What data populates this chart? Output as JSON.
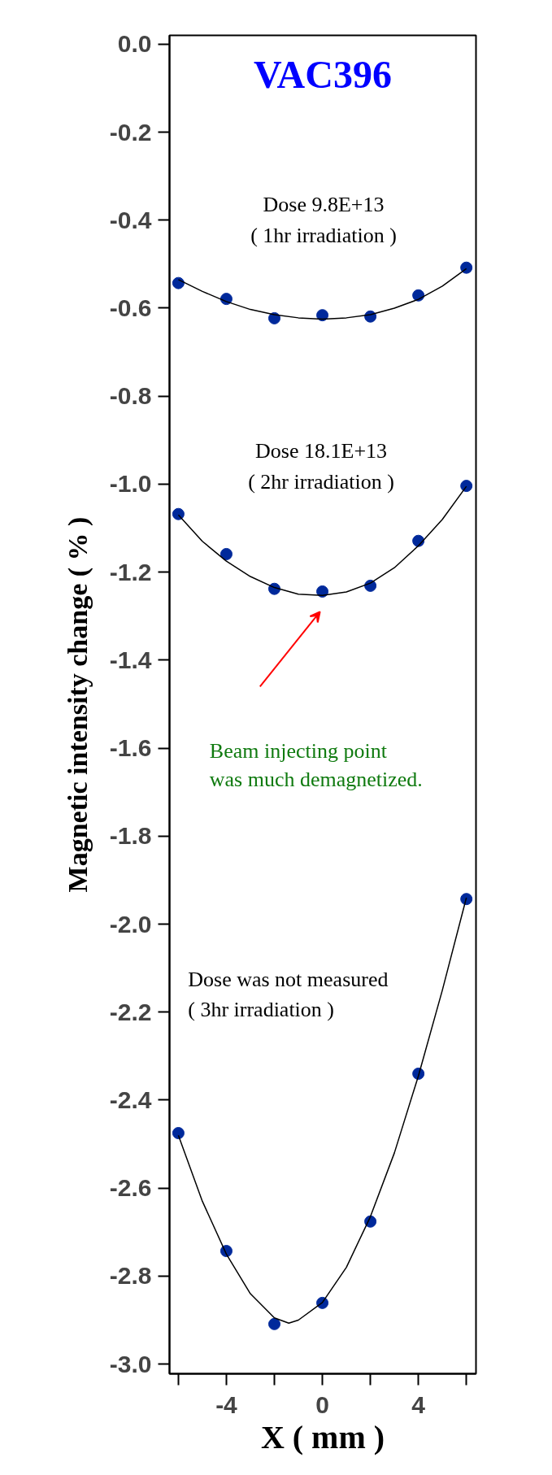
{
  "chart_data": {
    "type": "scatter",
    "title": "VAC396",
    "xlabel": "X ( mm )",
    "ylabel": "Magnetic intensity change ( % )",
    "xlim": [
      -6.37,
      6.4
    ],
    "ylim": [
      -3.022,
      0.02
    ],
    "xticks": [
      {
        "value": -6,
        "label": null
      },
      -4,
      {
        "value": -2,
        "label": null
      },
      0,
      {
        "value": 2,
        "label": null
      },
      4,
      {
        "value": 6,
        "label": null
      }
    ],
    "yticks": [
      {
        "value": 0,
        "label": "0.0"
      },
      -0.2,
      -0.4,
      -0.6,
      -0.8,
      {
        "value": -1,
        "label": "-1.0"
      },
      -1.2,
      -1.4,
      -1.6,
      -1.8,
      {
        "value": -2,
        "label": "-2.0"
      },
      -2.2,
      -2.4,
      -2.6,
      -2.8,
      {
        "value": -3,
        "label": "-3.0"
      }
    ],
    "grid": false,
    "marker": "circle",
    "series": [
      {
        "color": "#00299b",
        "x": [
          -6,
          -4,
          -2,
          0,
          2,
          4,
          6
        ],
        "values": [
          -0.543,
          -0.579,
          -0.623,
          -0.616,
          -0.619,
          -0.571,
          -0.508
        ]
      },
      {
        "color": "#00299b",
        "x": [
          -6,
          -4,
          -2,
          0,
          2,
          4,
          6
        ],
        "values": [
          -1.068,
          -1.159,
          -1.238,
          -1.244,
          -1.231,
          -1.129,
          -1.004
        ]
      },
      {
        "color": "#00299b",
        "x": [
          -6,
          -4,
          -2,
          0,
          2,
          4,
          6
        ],
        "values": [
          -2.475,
          -2.743,
          -2.909,
          -2.861,
          -2.676,
          -2.34,
          -1.943
        ]
      },
      {
        "type": "line",
        "color": "#000000",
        "line_style": "solid",
        "marker": "none",
        "x": [
          -6,
          -5,
          -4,
          -3,
          -2,
          -1,
          0,
          1,
          2,
          3,
          4,
          5,
          6
        ],
        "values": [
          -0.535,
          -0.562,
          -0.585,
          -0.603,
          -0.615,
          -0.622,
          -0.625,
          -0.622,
          -0.615,
          -0.6,
          -0.58,
          -0.55,
          -0.51
        ]
      },
      {
        "type": "line",
        "color": "#000000",
        "line_style": "solid",
        "marker": "none",
        "x": [
          -6,
          -5,
          -4,
          -3,
          -2,
          -1,
          0,
          1,
          2,
          3,
          4,
          5,
          6
        ],
        "values": [
          -1.07,
          -1.13,
          -1.175,
          -1.21,
          -1.235,
          -1.25,
          -1.253,
          -1.245,
          -1.225,
          -1.19,
          -1.14,
          -1.08,
          -1.005
        ]
      },
      {
        "type": "line",
        "color": "#000000",
        "line_style": "solid",
        "marker": "none",
        "x": [
          -6,
          -5,
          -4,
          -3,
          -2,
          -1.4,
          -1,
          0,
          1,
          2,
          3,
          4,
          5,
          6
        ],
        "values": [
          -2.48,
          -2.63,
          -2.75,
          -2.84,
          -2.895,
          -2.907,
          -2.9,
          -2.86,
          -2.78,
          -2.665,
          -2.52,
          -2.345,
          -2.15,
          -1.94
        ]
      }
    ],
    "annotations": [
      "Dose 9.8E+13\n( 1hr irradiation )",
      "Dose 18.1E+13\n( 2hr irradiation )",
      "Dose was not measured\n( 3hr irradiation )",
      "Beam injecting point\nwas much demagnetized."
    ]
  }
}
